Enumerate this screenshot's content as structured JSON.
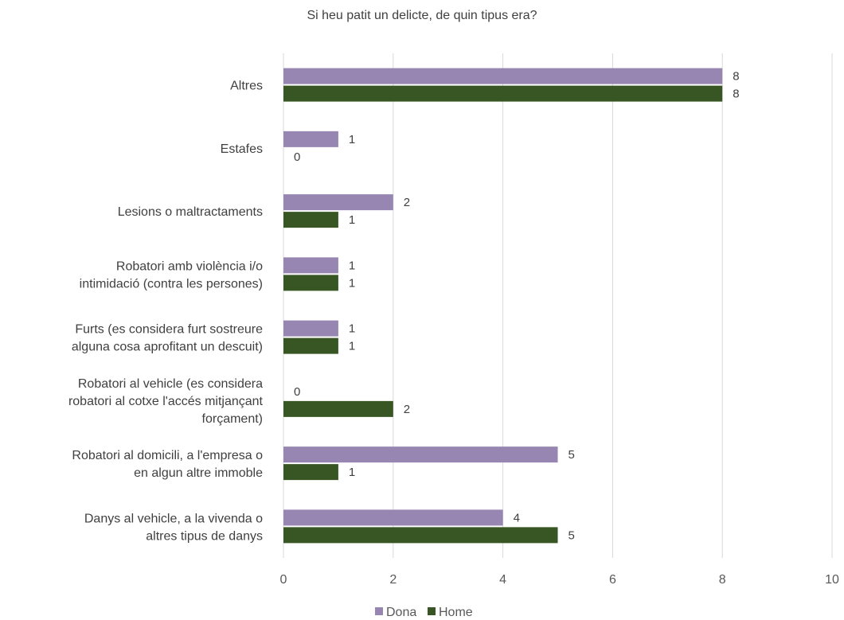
{
  "chart_data": {
    "type": "bar",
    "orientation": "horizontal",
    "title": "Si heu patit un delicte, de quin tipus era?",
    "xlabel": "",
    "ylabel": "",
    "xlim": [
      0,
      10
    ],
    "ticks": [
      "0",
      "2",
      "4",
      "6",
      "8",
      "10"
    ],
    "grid": true,
    "legend_position": "bottom",
    "categories": [
      [
        "Altres"
      ],
      [
        "Estafes"
      ],
      [
        "Lesions o maltractaments"
      ],
      [
        "Robatori amb violència i/o",
        "intimidació (contra les persones)"
      ],
      [
        "Furts (es considera furt sostreure",
        "alguna cosa aprofitant un descuit)"
      ],
      [
        "Robatori al vehicle (es considera",
        "robatori al cotxe l'accés mitjançant",
        "forçament)"
      ],
      [
        "Robatori al domicili, a l'empresa o",
        "en algun altre immoble"
      ],
      [
        "Danys al vehicle, a la vivenda o",
        "altres tipus de danys"
      ]
    ],
    "series": [
      {
        "name": "Dona",
        "color": "#9785b2",
        "values": [
          8,
          1,
          2,
          1,
          1,
          0,
          5,
          4
        ]
      },
      {
        "name": "Home",
        "color": "#375623",
        "values": [
          8,
          0,
          1,
          1,
          1,
          2,
          1,
          5
        ]
      }
    ]
  }
}
